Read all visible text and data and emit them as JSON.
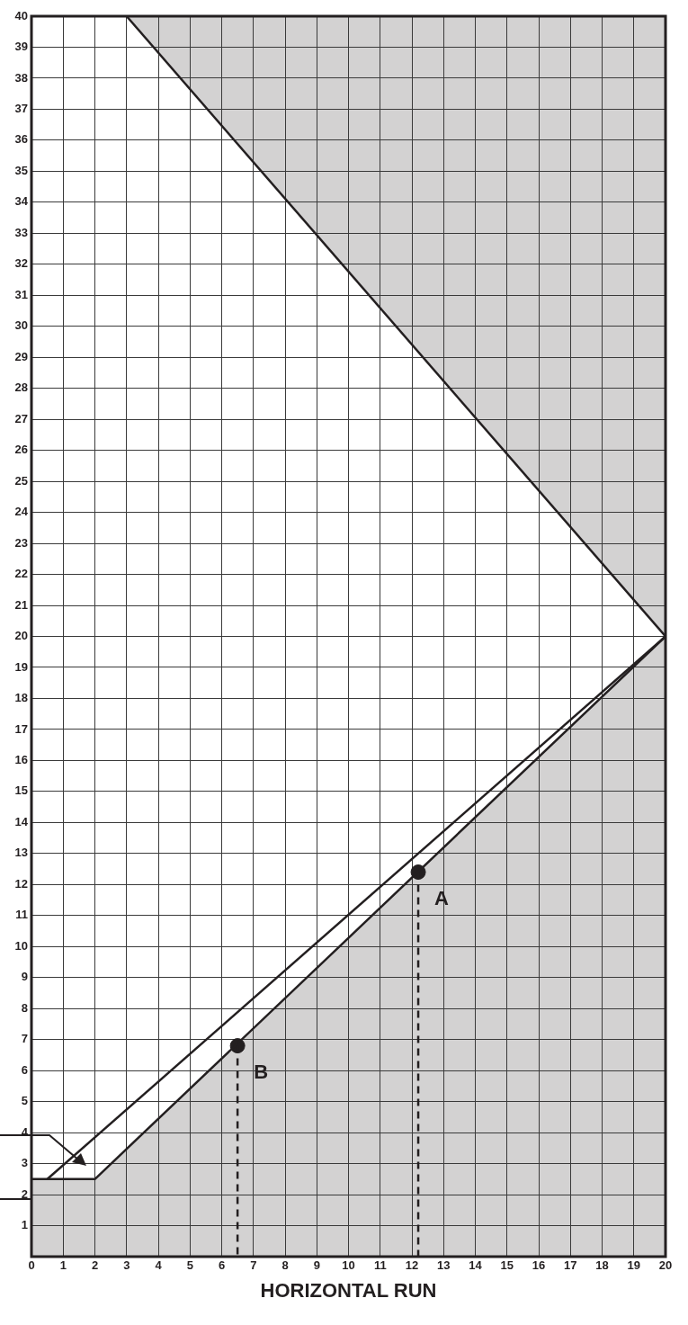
{
  "chart_data": {
    "type": "line",
    "xlabel": "HORIZONTAL RUN",
    "xlim": [
      0,
      20
    ],
    "ylim": [
      0,
      40
    ],
    "xticks": [
      0,
      1,
      2,
      3,
      4,
      5,
      6,
      7,
      8,
      9,
      10,
      11,
      12,
      13,
      14,
      15,
      16,
      17,
      18,
      19,
      20
    ],
    "yticks": [
      1,
      2,
      3,
      4,
      5,
      6,
      7,
      8,
      9,
      10,
      11,
      12,
      13,
      14,
      15,
      16,
      17,
      18,
      19,
      20,
      21,
      22,
      23,
      24,
      25,
      26,
      27,
      28,
      29,
      30,
      31,
      32,
      33,
      34,
      35,
      36,
      37,
      38,
      39,
      40
    ],
    "grid": true,
    "legend": false,
    "marker": "none",
    "line_style": "solid",
    "series": [
      {
        "type": "line",
        "color": "#231f20",
        "x": [
          3,
          20
        ],
        "values": [
          40,
          20
        ],
        "lower": [
          40,
          20
        ],
        "upper": [
          40,
          40
        ]
      },
      {
        "type": "line",
        "color": "#231f20",
        "x": [
          0.5,
          20
        ],
        "values": [
          2.5,
          20
        ]
      },
      {
        "type": "line",
        "color": "#231f20",
        "x": [
          0,
          2,
          20
        ],
        "values": [
          2.5,
          2.5,
          20
        ],
        "lower": [
          0,
          0,
          0
        ],
        "upper": [
          2.5,
          2.5,
          20
        ]
      },
      {
        "type": "line",
        "color": "#231f20",
        "x": [
          6.5,
          6.5
        ],
        "values": [
          6.8,
          0
        ],
        "line_style": "dashed"
      },
      {
        "type": "line",
        "color": "#231f20",
        "x": [
          12.2,
          12.2
        ],
        "values": [
          12.4,
          0
        ],
        "line_style": "dashed"
      },
      {
        "type": "scatter",
        "name": "B",
        "color": "#231f20",
        "x": [
          6.5
        ],
        "values": [
          6.8
        ],
        "marker": "circle"
      },
      {
        "type": "scatter",
        "name": "A",
        "color": "#231f20",
        "x": [
          12.2
        ],
        "values": [
          12.4
        ],
        "marker": "circle"
      }
    ]
  }
}
